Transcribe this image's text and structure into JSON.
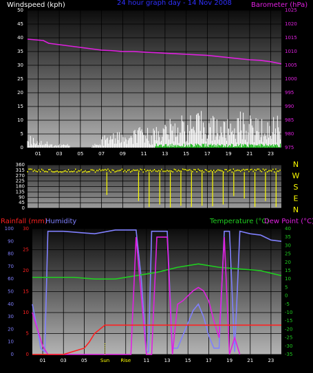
{
  "header": {
    "windspeed_label": "Windspeed (kph)",
    "period_label": "24 hour graph day - 14 Nov 2008",
    "barometer_label": "Barometer (hPa)"
  },
  "colors": {
    "background": "#000000",
    "plot_top": "#111111",
    "plot_bottom": "#a8a8a8",
    "grid": "#000000",
    "barometer": "#e020e0",
    "wind_avg": "#ffffff",
    "wind_gust": "#00c000",
    "direction": "#ffff00",
    "humidity": "#8080ff",
    "rainfall": "#ff2020",
    "temperature": "#20d020",
    "dewpoint": "#e020e0",
    "axis_text": "#ffffff",
    "time_text": "#ffff00",
    "header_text": "#3030ff"
  },
  "bottom_legend": {
    "rainfall_label": "Rainfall (mm)",
    "humidity_label": "Humidity",
    "temperature_label": "Temperature (°C)",
    "dewpoint_label": "Dew Point (°C)"
  },
  "time_ticks": [
    "01",
    "03",
    "05",
    "07",
    "09",
    "11",
    "13",
    "15",
    "17",
    "19",
    "21",
    "23"
  ],
  "bottom_time_ticks": [
    "01",
    "03",
    "05",
    "Sun",
    "Rise",
    "11",
    "13",
    "15",
    "17",
    "19",
    "21",
    "23"
  ],
  "direction_labels": [
    "N",
    "W",
    "S",
    "E",
    "N"
  ],
  "chart_data": [
    {
      "type": "line",
      "x_unit": "hour",
      "x_range": [
        0,
        24
      ],
      "ylabel": "Windspeed (kph)",
      "ylim": [
        0,
        50
      ],
      "y_ticks": [
        0,
        5,
        10,
        15,
        20,
        25,
        30,
        35,
        40,
        45,
        50
      ],
      "ylabel_right": "Barometer (hPa)",
      "ylim_right": [
        975,
        1025
      ],
      "y_ticks_right": [
        975,
        980,
        985,
        990,
        995,
        1000,
        1005,
        1010,
        1015,
        1020,
        1025
      ],
      "grid": true,
      "series": [
        {
          "axis": "right",
          "color": "#e020e0",
          "x": [
            0,
            1.5,
            2,
            3,
            4,
            5,
            6,
            7,
            8,
            9,
            10,
            11,
            12,
            13,
            14,
            15,
            16,
            17,
            18,
            19,
            20,
            21,
            22,
            23,
            24
          ],
          "y": [
            1014.5,
            1014,
            1013,
            1012.5,
            1012,
            1011.5,
            1011,
            1010.5,
            1010.3,
            1010,
            1010,
            1009.8,
            1009.6,
            1009.4,
            1009.2,
            1009,
            1008.8,
            1008.6,
            1008.2,
            1007.8,
            1007.4,
            1007,
            1006.8,
            1006.3,
            1005.5
          ]
        },
        {
          "axis": "left",
          "color": "#ffffff",
          "style": "spiky",
          "x": [
            0,
            1,
            2,
            3,
            4,
            5,
            6,
            7,
            8,
            9,
            10,
            11,
            12,
            13,
            14,
            15,
            16,
            17,
            18,
            19,
            20,
            21,
            22,
            23,
            24
          ],
          "y": [
            3,
            2,
            1,
            1,
            0,
            0,
            1,
            3,
            4,
            3,
            5,
            5,
            6,
            7,
            8,
            8,
            9,
            8,
            7,
            8,
            9,
            8,
            7,
            8,
            7
          ]
        },
        {
          "axis": "left",
          "color": "#00c000",
          "style": "spiky",
          "x": [
            0,
            2,
            4,
            6,
            8,
            10,
            12,
            14,
            16,
            18,
            20,
            22,
            24
          ],
          "y": [
            0,
            0,
            0,
            0,
            0,
            0,
            1,
            1,
            1,
            1,
            1,
            1,
            1
          ]
        }
      ]
    },
    {
      "type": "scatter",
      "x_unit": "hour",
      "x_range": [
        0,
        24
      ],
      "ylim": [
        0,
        360
      ],
      "y_ticks": [
        0,
        45,
        90,
        135,
        180,
        225,
        270,
        315,
        360
      ],
      "grid": true,
      "series": [
        {
          "color": "#ffff00",
          "style": "bars-from-top",
          "x": [
            0,
            2,
            4,
            6,
            7.5,
            9,
            10.5,
            11.5,
            12.5,
            13.5,
            14.5,
            15.5,
            16.5,
            17.5,
            18.5,
            19.5,
            20.5,
            21.5,
            22.5,
            23.5
          ],
          "y": [
            320,
            315,
            310,
            315,
            110,
            320,
            60,
            10,
            30,
            5,
            20,
            10,
            20,
            15,
            30,
            100,
            80,
            10,
            60,
            10
          ]
        }
      ]
    },
    {
      "type": "line",
      "x_unit": "hour",
      "x_range": [
        0,
        24
      ],
      "ylabel": "Rainfall (mm)",
      "ylim": [
        0,
        30
      ],
      "y_ticks": [
        0,
        5,
        10,
        15,
        20,
        25,
        30
      ],
      "ylabel_far_left": "Humidity",
      "ylim_far_left": [
        0,
        100
      ],
      "y_ticks_far_left": [
        0,
        10,
        20,
        30,
        40,
        50,
        60,
        70,
        80,
        90,
        100
      ],
      "ylabel_right": "Temperature (°C) / Dew Point (°C)",
      "ylim_right": [
        -35,
        40
      ],
      "y_ticks_right": [
        -35,
        -30,
        -25,
        -20,
        -15,
        -10,
        -5,
        0,
        5,
        10,
        15,
        20,
        25,
        30,
        35,
        40
      ],
      "grid": true,
      "series": [
        {
          "axis": "far_left",
          "color": "#8080ff",
          "x": [
            0,
            0.5,
            0.8,
            1.2,
            1.5,
            3,
            6,
            8,
            10,
            10.5,
            11,
            11.2,
            11.5,
            12,
            13,
            13.5,
            14,
            14.5,
            15,
            15.5,
            16,
            16.5,
            17,
            17.5,
            18,
            18.5,
            19,
            19.5,
            20,
            21,
            22,
            23,
            24
          ],
          "y": [
            40,
            20,
            5,
            2,
            98,
            98,
            96,
            99,
            99,
            60,
            2,
            2,
            98,
            98,
            98,
            5,
            5,
            15,
            25,
            35,
            40,
            30,
            15,
            5,
            5,
            98,
            98,
            2,
            98,
            96,
            95,
            91,
            90
          ]
        },
        {
          "axis": "right",
          "color": "#20d020",
          "x": [
            0,
            2,
            4,
            6,
            8,
            10,
            12,
            14,
            16,
            18,
            20,
            22,
            24
          ],
          "y": [
            11,
            11,
            11,
            10,
            10,
            12,
            14,
            17,
            19,
            17,
            16,
            15,
            12
          ]
        },
        {
          "axis": "right",
          "color": "#e020e0",
          "x": [
            0,
            0.5,
            1,
            1.5,
            9.5,
            10,
            11,
            11.5,
            12,
            13,
            13.5,
            14,
            14.5,
            15,
            15.5,
            16,
            16.5,
            17,
            17.5,
            18,
            18.5,
            19,
            19.5,
            20
          ],
          "y": [
            -10,
            -20,
            -30,
            -35,
            -35,
            35,
            -35,
            -35,
            35,
            35,
            -35,
            -5,
            -3,
            0,
            3,
            5,
            3,
            -3,
            -15,
            -25,
            35,
            -35,
            -25,
            -35
          ]
        },
        {
          "axis": "left",
          "color": "#ff2020",
          "x": [
            0,
            3,
            5,
            5.5,
            6,
            6.5,
            7,
            8,
            24
          ],
          "y": [
            0,
            0,
            1.5,
            3,
            5,
            6,
            7,
            7,
            7
          ]
        }
      ]
    }
  ]
}
